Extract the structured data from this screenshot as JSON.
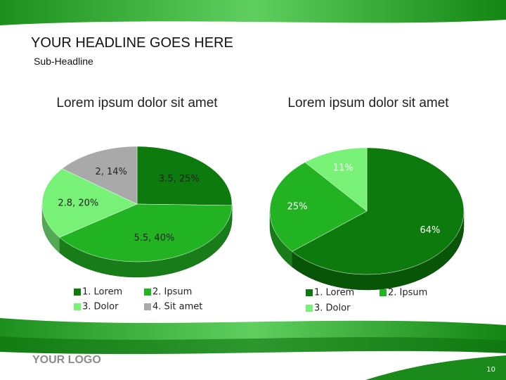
{
  "headline": "YOUR HEADLINE GOES HERE",
  "subheadline": "Sub-Headline",
  "logo": "YOUR LOGO",
  "page_number": "10",
  "chart_data": [
    {
      "type": "pie3d",
      "title": "Lorem ipsum dolor sit amet",
      "categories": [
        "1. Lorem",
        "2. Ipsum",
        "3. Dolor",
        "4. Sit amet"
      ],
      "values": [
        3.5,
        5.5,
        2.8,
        2
      ],
      "value_labels": [
        "3.5, 25%",
        "5.5, 40%",
        "2.8, 20%",
        "2, 14%"
      ],
      "colors": [
        "#0c7a0c",
        "#22b322",
        "#77f277",
        "#a9a9a9"
      ]
    },
    {
      "type": "pie3d",
      "title": "Lorem ipsum dolor sit amet",
      "categories": [
        "1. Lorem",
        "2. Ipsum",
        "3. Dolor"
      ],
      "values": [
        64,
        25,
        11
      ],
      "value_labels": [
        "64%",
        "25%",
        "11%"
      ],
      "colors": [
        "#0c7a0c",
        "#22b322",
        "#77f277"
      ]
    }
  ]
}
